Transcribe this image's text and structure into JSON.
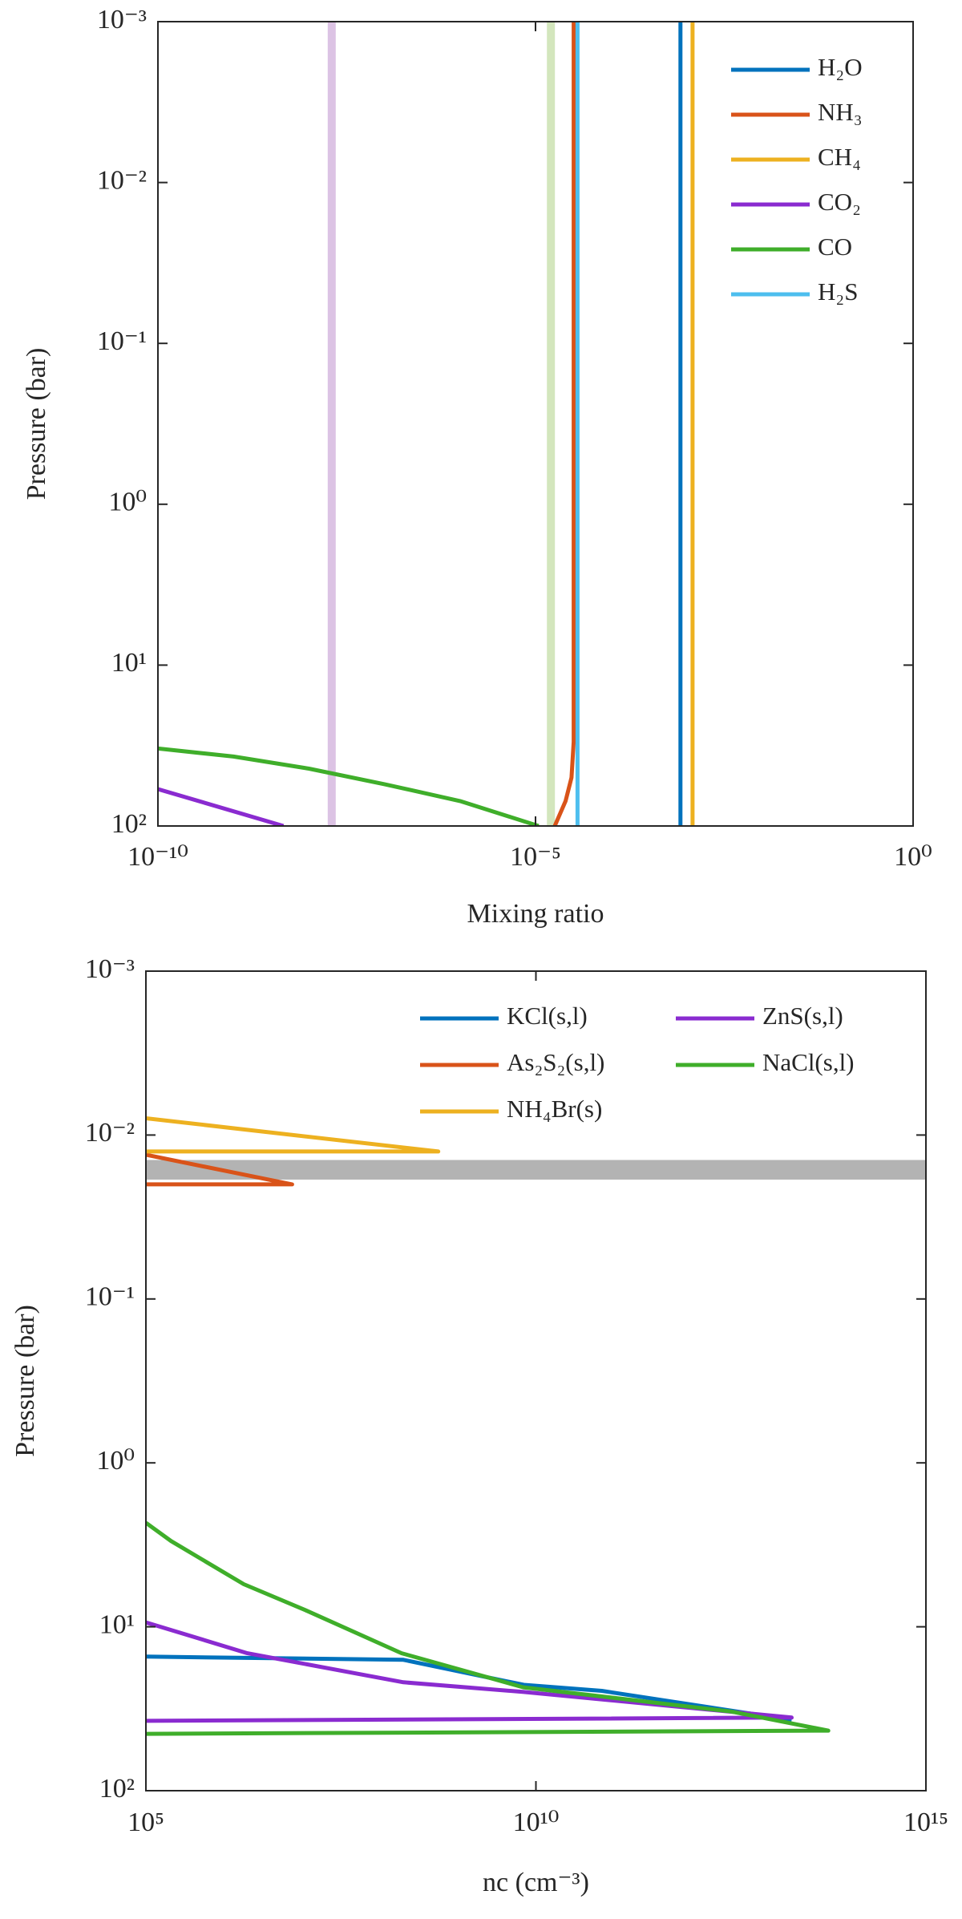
{
  "chart_data": [
    {
      "type": "line",
      "xlabel": "Mixing ratio",
      "ylabel": "Pressure (bar)",
      "xscale": "log",
      "yscale": "log",
      "y_reversed": true,
      "xlim": [
        1e-10,
        1
      ],
      "ylim": [
        0.001,
        100
      ],
      "xticks": [
        {
          "value": 1e-10,
          "label": "10⁻¹⁰"
        },
        {
          "value": 1e-05,
          "label": "10⁻⁵"
        },
        {
          "value": 1,
          "label": "10⁰"
        }
      ],
      "yticks": [
        {
          "value": 0.001,
          "label": "10⁻³"
        },
        {
          "value": 0.01,
          "label": "10⁻²"
        },
        {
          "value": 0.1,
          "label": "10⁻¹"
        },
        {
          "value": 1,
          "label": "10⁰"
        },
        {
          "value": 10,
          "label": "10¹"
        },
        {
          "value": 100,
          "label": "10²"
        }
      ],
      "legend": "upper right",
      "series": [
        {
          "color": "#dcc3e4",
          "x": [
            2e-08,
            2e-08
          ],
          "y": [
            0.001,
            100
          ]
        },
        {
          "color": "#d3e6bd",
          "x": [
            1.6e-05,
            1.6e-05
          ],
          "y": [
            0.001,
            100
          ]
        },
        {
          "name": "H₂O",
          "color": "#0072bd",
          "x": [
            0.00083,
            0.00083
          ],
          "y": [
            0.001,
            100
          ]
        },
        {
          "name": "NH₃",
          "color": "#d95319",
          "x": [
            3.2e-05,
            3.2e-05,
            3e-05,
            2.5e-05,
            1.8e-05
          ],
          "y": [
            0.001,
            30,
            50,
            70,
            100
          ]
        },
        {
          "name": "CH₄",
          "color": "#edb120",
          "x": [
            0.0012,
            0.0012
          ],
          "y": [
            0.001,
            100
          ]
        },
        {
          "name": "CO₂",
          "color": "#8a2bd0",
          "x": [
            1e-10,
            4.6e-09
          ],
          "y": [
            59,
            100
          ]
        },
        {
          "name": "CO",
          "color": "#3fae2a",
          "x": [
            1e-10,
            1e-09,
            1e-08,
            1e-07,
            1e-06,
            1.1e-05
          ],
          "y": [
            33,
            37,
            44,
            55,
            70,
            100
          ]
        },
        {
          "name": "H₂S",
          "color": "#4dbeee",
          "x": [
            3.6e-05,
            3.6e-05
          ],
          "y": [
            0.001,
            100
          ]
        }
      ]
    },
    {
      "type": "line",
      "xlabel": "nc (cm⁻³)",
      "ylabel": "Pressure (bar)",
      "xscale": "log",
      "yscale": "log",
      "y_reversed": true,
      "xlim": [
        100000.0,
        1000000000000000.0
      ],
      "ylim": [
        0.001,
        100
      ],
      "xticks": [
        {
          "value": 100000.0,
          "label": "10⁵"
        },
        {
          "value": 10000000000.0,
          "label": "10¹⁰"
        },
        {
          "value": 1000000000000000.0,
          "label": "10¹⁵"
        }
      ],
      "yticks": [
        {
          "value": 0.001,
          "label": "10⁻³"
        },
        {
          "value": 0.01,
          "label": "10⁻²"
        },
        {
          "value": 0.1,
          "label": "10⁻¹"
        },
        {
          "value": 1,
          "label": "10⁰"
        },
        {
          "value": 10,
          "label": "10¹"
        },
        {
          "value": 100,
          "label": "10²"
        }
      ],
      "legend": "upper right",
      "shaded_range": {
        "color": "#b3b3b3",
        "ylim": [
          0.0142,
          0.0187
        ]
      },
      "series": [
        {
          "name": "KCl(s,l)",
          "color": "#0072bd",
          "x": [
            100000.0,
            200000000.0,
            7000000000.0,
            70000000000.0,
            19000000000000.0
          ],
          "y": [
            15.2,
            15.9,
            22.6,
            24.6,
            37
          ]
        },
        {
          "name": "As₂S₂(s,l)",
          "color": "#d95319",
          "x": [
            100000.0,
            7500000.0,
            100000.0
          ],
          "y": [
            0.0132,
            0.02,
            0.02
          ]
        },
        {
          "name": "NH₄Br(s)",
          "color": "#edb120",
          "x": [
            100000.0,
            560000000.0,
            100000.0
          ],
          "y": [
            0.0079,
            0.0126,
            0.0126
          ]
        },
        {
          "name": "ZnS(s,l)",
          "color": "#8a2bd0",
          "x": [
            100000.0,
            2000000.0,
            200000000.0,
            7000000000.0,
            19000000000000.0,
            100000.0
          ],
          "y": [
            9.4,
            14.5,
            21.8,
            25,
            35.8,
            37.5
          ]
        },
        {
          "name": "NaCl(s,l)",
          "color": "#3fae2a",
          "x": [
            100000.0,
            210000.0,
            1800000.0,
            11000000.0,
            190000000.0,
            6900000000.0,
            3200000000000.0,
            56000000000000.0,
            100000.0
          ],
          "y": [
            2.32,
            3.0,
            5.5,
            7.9,
            14.5,
            23.4,
            32.9,
            43,
            45
          ]
        }
      ]
    }
  ]
}
